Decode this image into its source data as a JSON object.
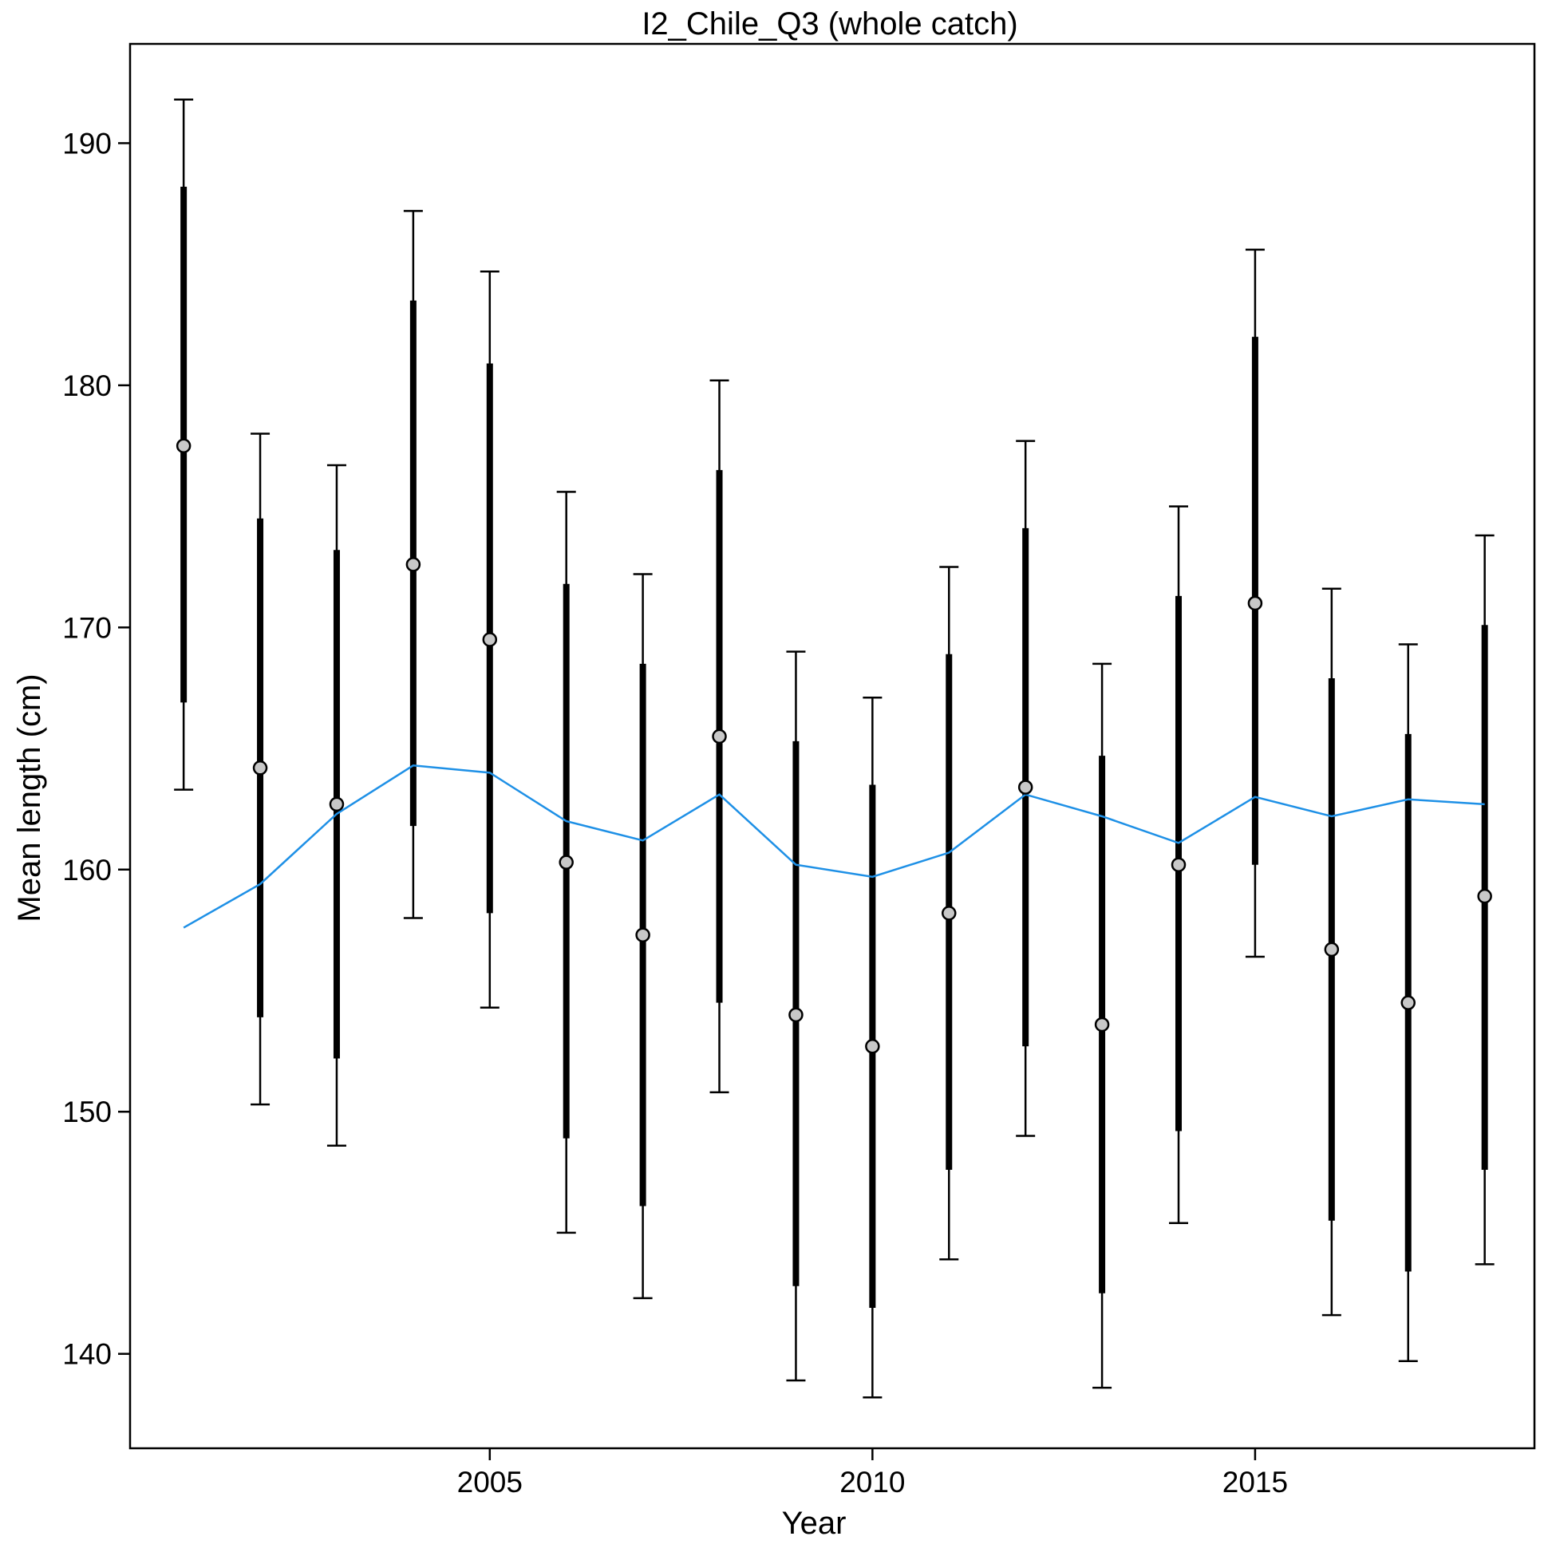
{
  "chart_data": {
    "type": "line",
    "title": "I2_Chile_Q3 (whole catch)",
    "xlabel": "Year",
    "ylabel": "Mean length (cm)",
    "xlim": [
      2000.3,
      2018.65
    ],
    "ylim": [
      136.1,
      194.1
    ],
    "x_ticks": [
      2005,
      2010,
      2015
    ],
    "y_ticks": [
      140,
      150,
      160,
      170,
      180,
      190
    ],
    "grid": false,
    "legend": "none",
    "colors": {
      "expected": "#1E90E6",
      "observed_fill": "#C8C8C8",
      "bars": "#000000"
    },
    "series": [
      {
        "name": "",
        "role": "observed",
        "x": [
          2001,
          2002,
          2003,
          2004,
          2005,
          2006,
          2007,
          2008,
          2009,
          2010,
          2011,
          2012,
          2013,
          2014,
          2015,
          2016,
          2017,
          2018
        ],
        "y": [
          177.5,
          164.2,
          162.7,
          172.6,
          169.5,
          160.3,
          157.3,
          165.5,
          154.0,
          152.7,
          158.2,
          163.4,
          153.6,
          160.2,
          171.0,
          156.7,
          154.5,
          158.9
        ],
        "inner_low": [
          166.9,
          153.9,
          152.2,
          161.8,
          158.2,
          148.9,
          146.1,
          154.5,
          142.8,
          141.9,
          147.6,
          152.7,
          142.5,
          149.2,
          160.2,
          145.5,
          143.4,
          147.6
        ],
        "inner_high": [
          188.2,
          174.5,
          173.2,
          183.5,
          180.9,
          171.8,
          168.5,
          176.5,
          165.3,
          163.5,
          168.9,
          174.1,
          164.7,
          171.3,
          182.0,
          167.9,
          165.6,
          170.1
        ],
        "outer_low": [
          163.3,
          150.3,
          148.6,
          158.0,
          154.3,
          145.0,
          142.3,
          150.8,
          138.9,
          138.2,
          143.9,
          149.0,
          138.6,
          145.4,
          156.4,
          141.6,
          139.7,
          143.7
        ],
        "outer_high": [
          191.8,
          178.0,
          176.7,
          187.2,
          184.7,
          175.6,
          172.2,
          180.2,
          169.0,
          167.1,
          172.5,
          177.7,
          168.5,
          175.0,
          185.6,
          171.6,
          169.3,
          173.8
        ]
      },
      {
        "name": "",
        "role": "expected",
        "x": [
          2001,
          2002,
          2003,
          2004,
          2005,
          2006,
          2007,
          2008,
          2009,
          2010,
          2011,
          2012,
          2013,
          2014,
          2015,
          2016,
          2017,
          2018
        ],
        "y": [
          157.6,
          159.4,
          162.3,
          164.3,
          164.0,
          162.0,
          161.2,
          163.1,
          160.2,
          159.7,
          160.7,
          163.1,
          162.2,
          161.1,
          163.0,
          162.2,
          162.9,
          162.7
        ]
      }
    ]
  }
}
